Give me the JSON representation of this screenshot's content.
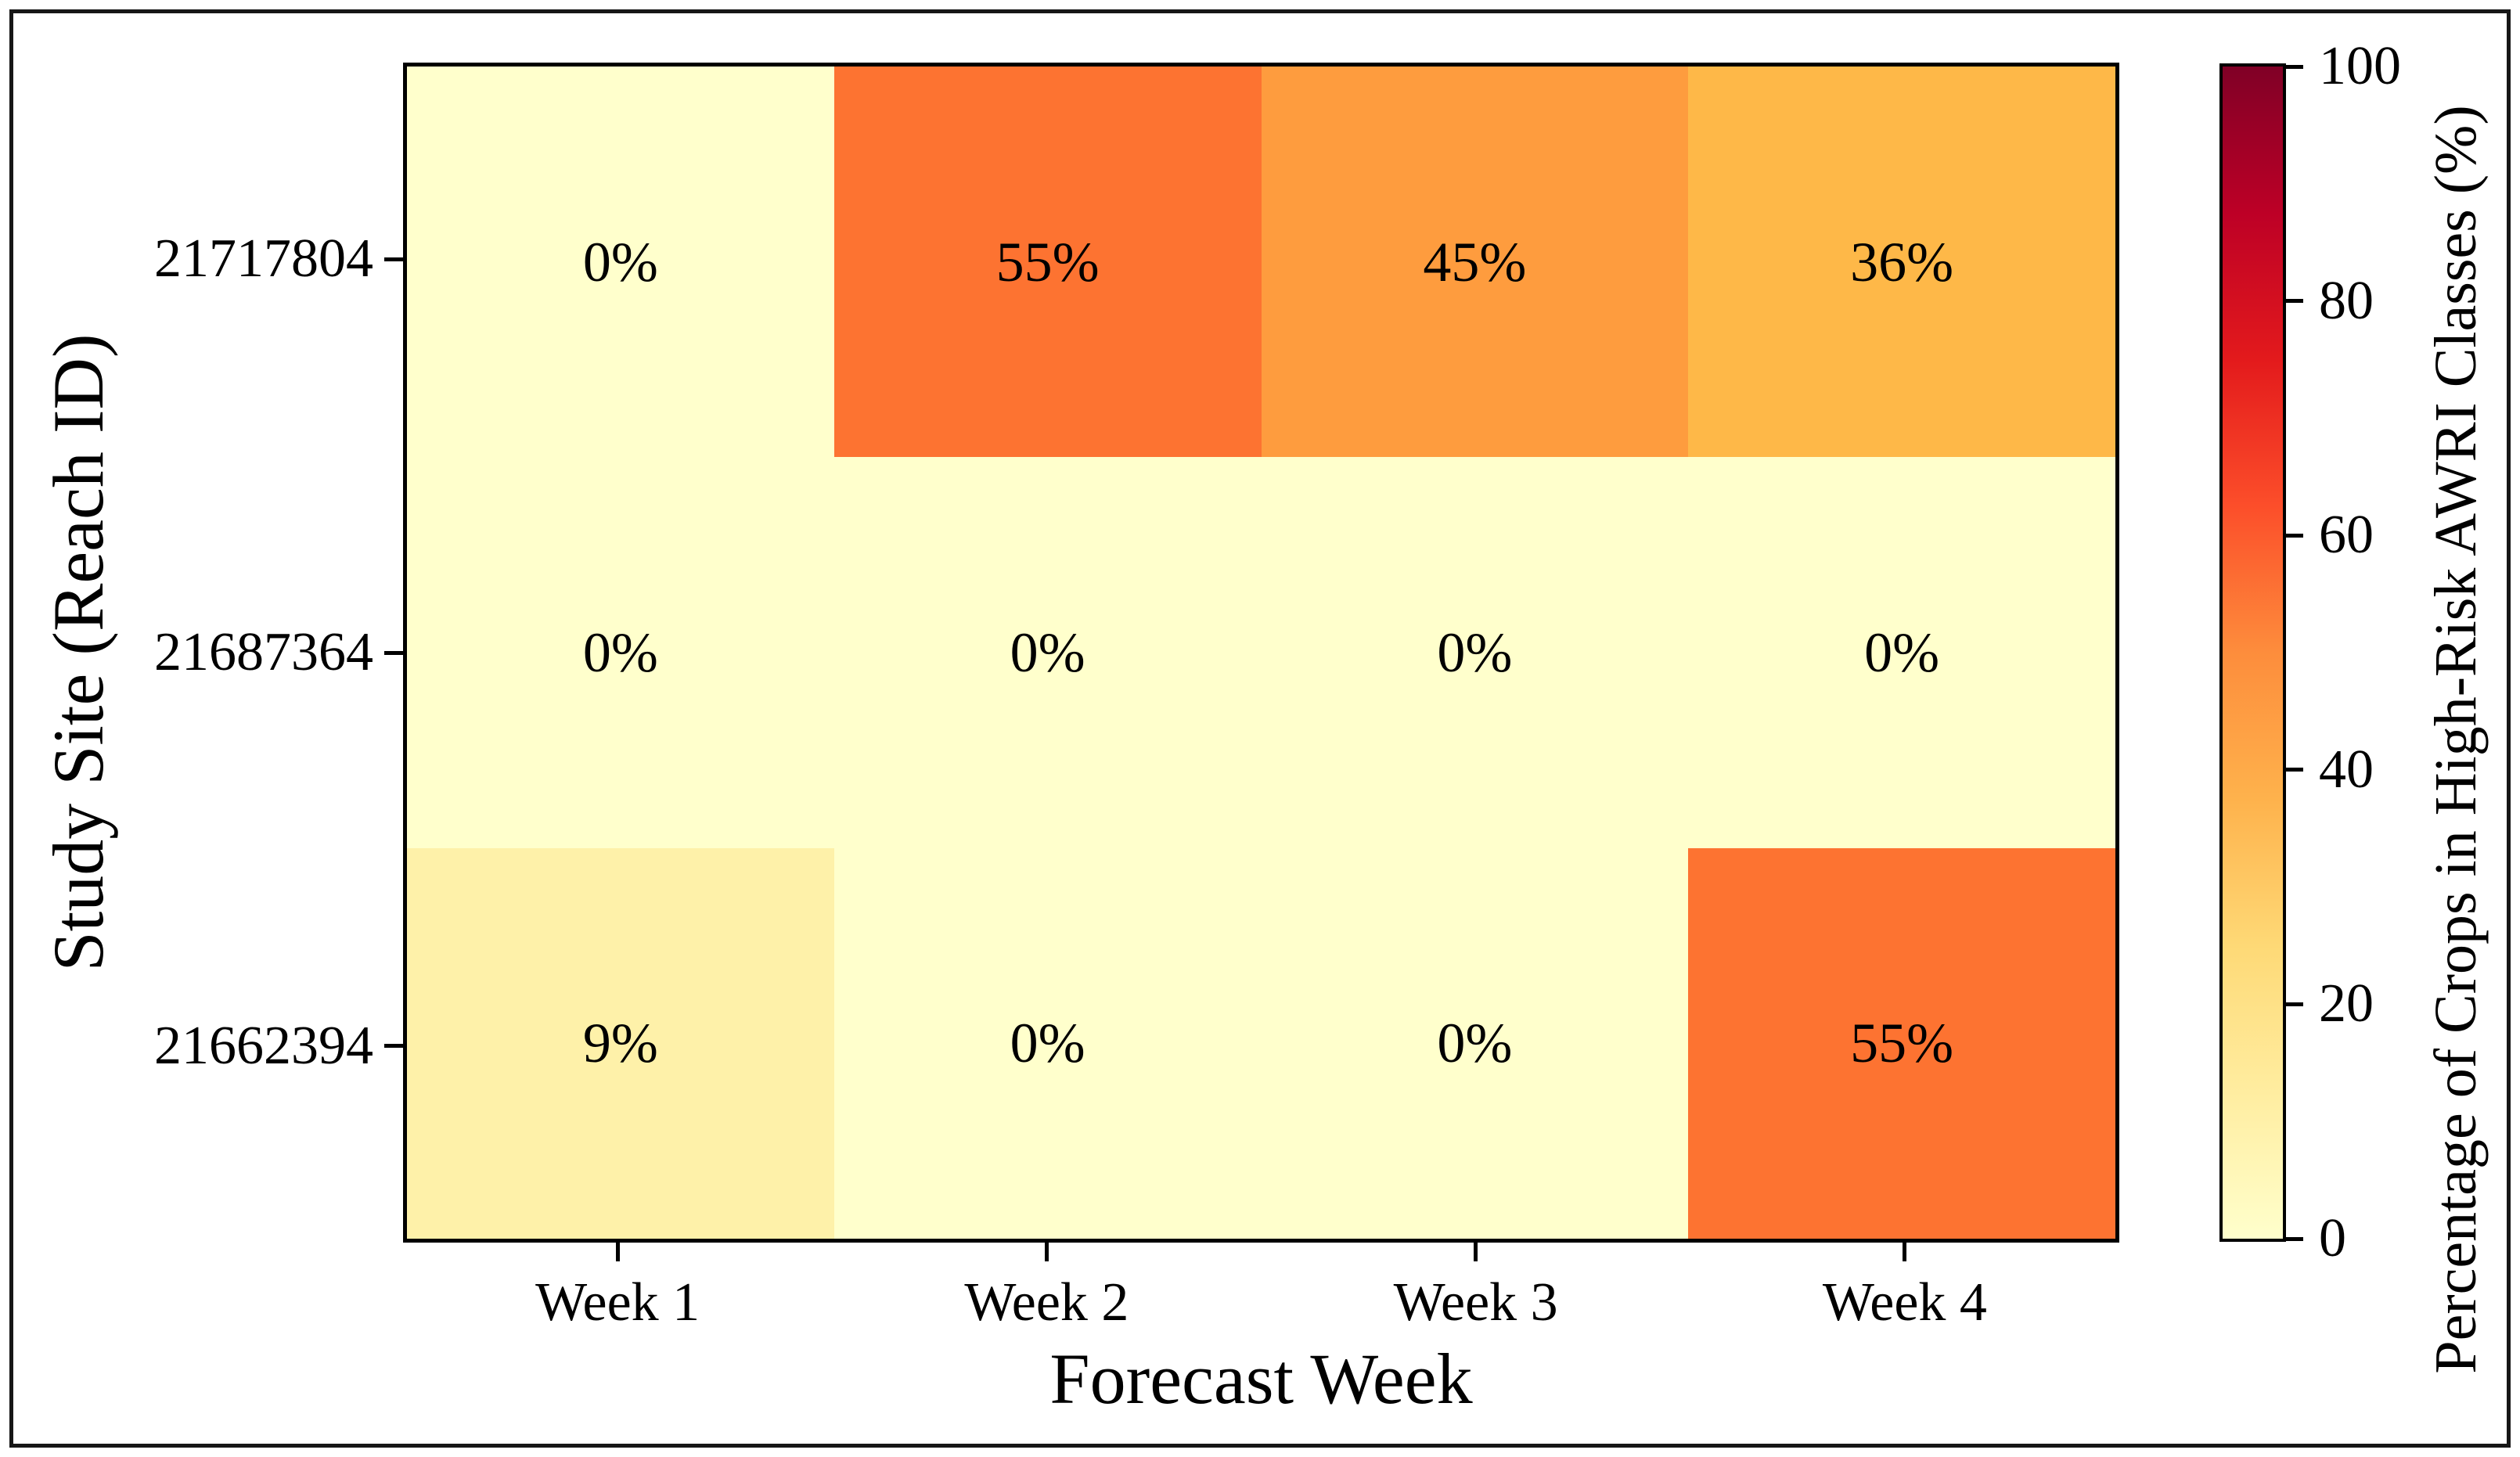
{
  "figure": {
    "background": "#ffffff",
    "frame_color": "#161616",
    "text_color": "#000000"
  },
  "chart_data": {
    "type": "heatmap",
    "xlabel": "Forecast Week",
    "ylabel": "Study Site (Reach ID)",
    "x_categories": [
      "Week 1",
      "Week 2",
      "Week 3",
      "Week 4"
    ],
    "y_categories": [
      "21717804",
      "21687364",
      "21662394"
    ],
    "values": [
      [
        0,
        55,
        45,
        36
      ],
      [
        0,
        0,
        0,
        0
      ],
      [
        9,
        0,
        0,
        55
      ]
    ],
    "cell_labels": [
      [
        "0%",
        "55%",
        "45%",
        "36%"
      ],
      [
        "0%",
        "0%",
        "0%",
        "0%"
      ],
      [
        "9%",
        "0%",
        "0%",
        "55%"
      ]
    ],
    "cell_colors": [
      [
        "#ffffcc",
        "#fd7331",
        "#fe9c3e",
        "#feb848"
      ],
      [
        "#ffffcc",
        "#ffffcc",
        "#ffffcc",
        "#ffffcc"
      ],
      [
        "#fef1a9",
        "#ffffcc",
        "#ffffcc",
        "#fd7331"
      ]
    ],
    "grid": false,
    "legend_position": "right-colorbar",
    "colorbar": {
      "label": "Percentage of Crops in High-Risk AWRI Classes (%)",
      "ticks": [
        0,
        20,
        40,
        60,
        80,
        100
      ],
      "range": [
        0,
        100
      ],
      "colormap": "YlOrRd",
      "gradient_stops_top_to_bottom": [
        "#800026",
        "#bd0026",
        "#e31a1c",
        "#fc4e2a",
        "#fd8d3c",
        "#feb24c",
        "#fed976",
        "#ffeda0",
        "#ffffcc"
      ]
    }
  }
}
